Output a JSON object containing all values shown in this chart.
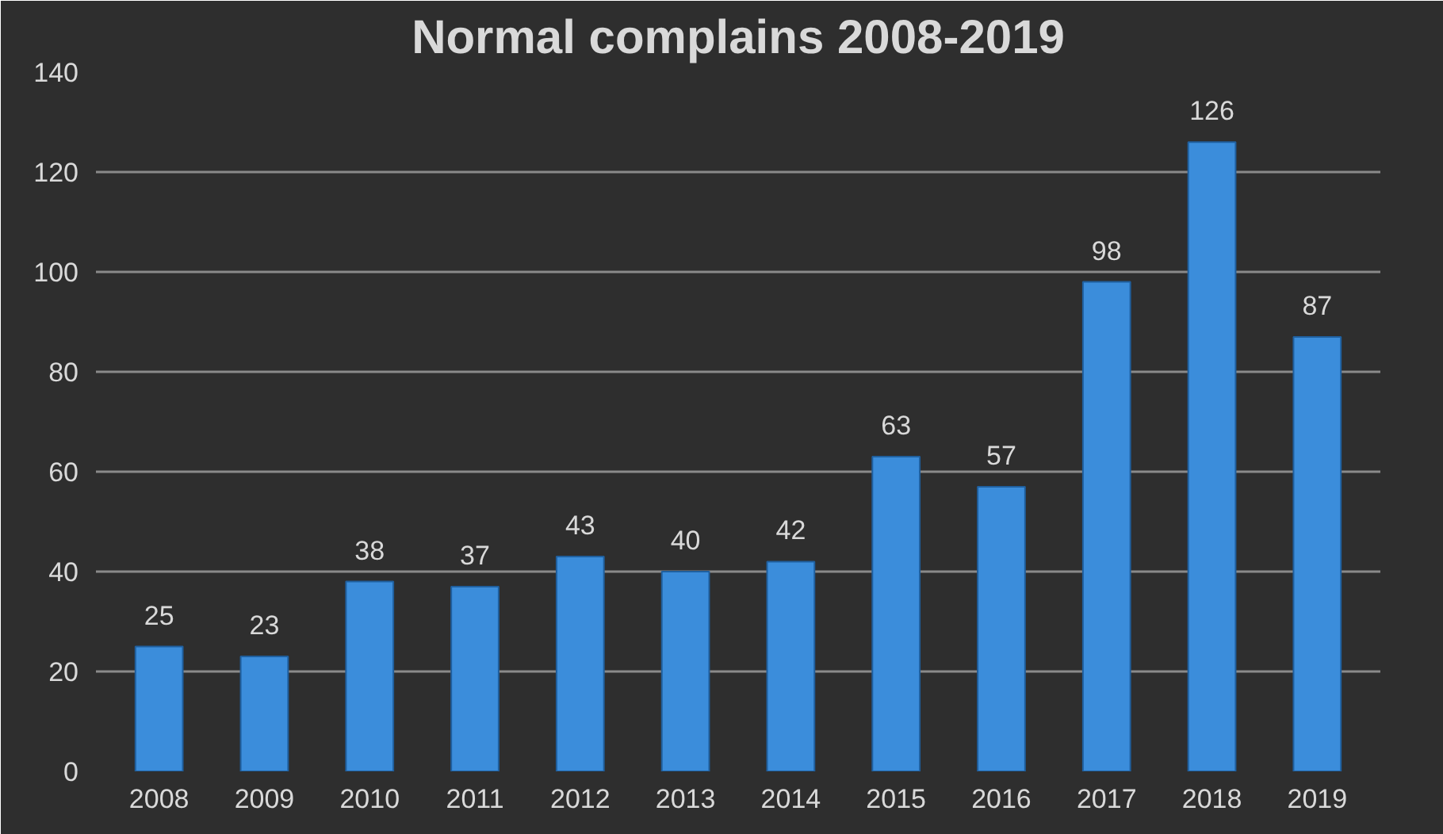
{
  "chart_data": {
    "type": "bar",
    "title": "Normal complains 2008-2019",
    "categories": [
      "2008",
      "2009",
      "2010",
      "2011",
      "2012",
      "2013",
      "2014",
      "2015",
      "2016",
      "2017",
      "2018",
      "2019"
    ],
    "values": [
      25,
      23,
      38,
      37,
      43,
      40,
      42,
      63,
      57,
      98,
      126,
      87
    ],
    "color": "#3b8ddb",
    "ylim": [
      0,
      140
    ],
    "yticks": [
      0,
      20,
      40,
      60,
      80,
      100,
      120,
      140
    ],
    "grid": "y",
    "data_labels": true
  }
}
